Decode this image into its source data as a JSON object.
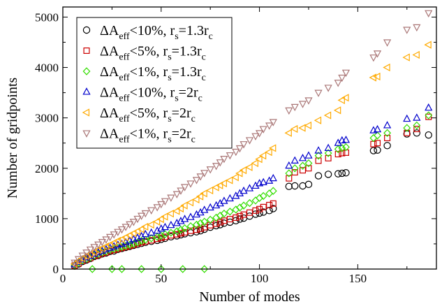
{
  "chart_data": {
    "type": "scatter",
    "xlabel": "Number of modes",
    "ylabel": "Number of gridpoints",
    "xlim": [
      0,
      190
    ],
    "ylim": [
      0,
      5200
    ],
    "xticks": [
      0,
      50,
      100,
      150
    ],
    "yticks": [
      0,
      1000,
      2000,
      3000,
      4000,
      5000
    ],
    "grid": false,
    "legend_position": "top-left",
    "series": [
      {
        "key": "s1",
        "marker": "circle",
        "color": "#000000",
        "label": {
          "pre": "ΔA",
          "sub1": "eff",
          "mid": "<10%, r",
          "sub2": "s",
          "post": "=1.3r",
          "sub3": "c"
        },
        "x": [
          6,
          8,
          10,
          12,
          14,
          16,
          18,
          20,
          22,
          24,
          26,
          28,
          30,
          32,
          34,
          36,
          38,
          40,
          42,
          45,
          48,
          50,
          52,
          55,
          58,
          60,
          62,
          65,
          68,
          70,
          72,
          75,
          78,
          80,
          82,
          85,
          88,
          90,
          92,
          95,
          98,
          100,
          102,
          105,
          107,
          115,
          118,
          122,
          125,
          130,
          135,
          140,
          142,
          144,
          158,
          160,
          165,
          175,
          180,
          186
        ],
        "y": [
          60,
          100,
          150,
          180,
          210,
          250,
          270,
          300,
          320,
          350,
          360,
          390,
          410,
          430,
          450,
          470,
          490,
          510,
          530,
          550,
          570,
          590,
          610,
          640,
          660,
          680,
          700,
          720,
          740,
          760,
          790,
          830,
          860,
          880,
          910,
          930,
          960,
          990,
          1010,
          1050,
          1090,
          1110,
          1130,
          1160,
          1200,
          1640,
          1650,
          1650,
          1680,
          1850,
          1880,
          1890,
          1900,
          1910,
          2350,
          2360,
          2450,
          2680,
          2700,
          2660
        ]
      },
      {
        "key": "s2",
        "marker": "square",
        "color": "#cc0000",
        "label": {
          "pre": "ΔA",
          "sub1": "eff",
          "mid": "<5%, r",
          "sub2": "s",
          "post": "=1.3r",
          "sub3": "c"
        },
        "x": [
          6,
          8,
          10,
          12,
          14,
          16,
          18,
          20,
          22,
          24,
          26,
          28,
          30,
          32,
          34,
          36,
          38,
          40,
          42,
          45,
          48,
          50,
          52,
          55,
          58,
          60,
          62,
          65,
          68,
          70,
          72,
          75,
          78,
          80,
          82,
          85,
          88,
          90,
          92,
          95,
          98,
          100,
          102,
          105,
          107,
          115,
          118,
          122,
          125,
          130,
          135,
          140,
          142,
          144,
          158,
          160,
          165,
          175,
          180,
          186
        ],
        "y": [
          70,
          110,
          160,
          190,
          220,
          260,
          280,
          310,
          330,
          360,
          380,
          400,
          420,
          440,
          460,
          480,
          510,
          530,
          550,
          570,
          600,
          620,
          640,
          670,
          690,
          710,
          730,
          760,
          780,
          800,
          830,
          870,
          900,
          930,
          960,
          990,
          1020,
          1050,
          1080,
          1120,
          1160,
          1190,
          1230,
          1270,
          1300,
          1800,
          1920,
          1960,
          2000,
          2150,
          2200,
          2280,
          2300,
          2310,
          2480,
          2500,
          2600,
          2700,
          2780,
          3020
        ]
      },
      {
        "key": "s3",
        "marker": "diamond",
        "color": "#33dd00",
        "label": {
          "pre": "ΔA",
          "sub1": "eff",
          "mid": "<1%, r",
          "sub2": "s",
          "post": "=1.3r",
          "sub3": "c"
        },
        "x": [
          6,
          8,
          10,
          12,
          14,
          16,
          18,
          20,
          22,
          24,
          26,
          28,
          30,
          32,
          34,
          36,
          38,
          40,
          42,
          45,
          48,
          50,
          52,
          55,
          58,
          60,
          62,
          65,
          68,
          70,
          72,
          75,
          78,
          80,
          82,
          85,
          88,
          90,
          92,
          95,
          98,
          100,
          102,
          105,
          107,
          115,
          118,
          122,
          125,
          130,
          135,
          140,
          142,
          144,
          158,
          160,
          165,
          175,
          180,
          186,
          15,
          25,
          30,
          40,
          50,
          61,
          72
        ],
        "y": [
          80,
          120,
          170,
          200,
          230,
          270,
          300,
          330,
          350,
          380,
          400,
          420,
          440,
          460,
          480,
          500,
          530,
          560,
          580,
          610,
          640,
          660,
          690,
          720,
          750,
          780,
          810,
          850,
          880,
          910,
          940,
          980,
          1020,
          1060,
          1100,
          1140,
          1180,
          1220,
          1260,
          1310,
          1360,
          1410,
          1450,
          1500,
          1550,
          1900,
          2000,
          2050,
          2100,
          2250,
          2300,
          2380,
          2400,
          2420,
          2600,
          2650,
          2700,
          2800,
          2850,
          3050,
          0,
          0,
          0,
          0,
          0,
          0,
          0
        ]
      },
      {
        "key": "s4",
        "marker": "triangle-up",
        "color": "#0000cc",
        "label": {
          "pre": "ΔA",
          "sub1": "eff",
          "mid": "<10%, r",
          "sub2": "s",
          "post": "=2r",
          "sub3": "c"
        },
        "x": [
          6,
          8,
          10,
          12,
          14,
          16,
          18,
          20,
          22,
          24,
          26,
          28,
          30,
          32,
          34,
          36,
          38,
          40,
          42,
          45,
          48,
          50,
          52,
          55,
          58,
          60,
          62,
          65,
          68,
          70,
          72,
          75,
          78,
          80,
          82,
          85,
          88,
          90,
          92,
          95,
          98,
          100,
          102,
          105,
          107,
          115,
          118,
          122,
          125,
          130,
          135,
          140,
          142,
          144,
          158,
          160,
          165,
          175,
          180,
          186
        ],
        "y": [
          90,
          140,
          190,
          230,
          260,
          300,
          330,
          360,
          390,
          420,
          450,
          480,
          500,
          530,
          560,
          590,
          620,
          650,
          690,
          720,
          760,
          800,
          830,
          870,
          910,
          950,
          990,
          1030,
          1080,
          1120,
          1170,
          1220,
          1260,
          1300,
          1350,
          1400,
          1450,
          1500,
          1550,
          1600,
          1650,
          1700,
          1720,
          1750,
          1800,
          2050,
          2150,
          2200,
          2250,
          2350,
          2400,
          2500,
          2550,
          2560,
          2750,
          2770,
          2850,
          2980,
          3000,
          3200
        ]
      },
      {
        "key": "s5",
        "marker": "triangle-left",
        "color": "#ffaa00",
        "label": {
          "pre": "ΔA",
          "sub1": "eff",
          "mid": "<5%, r",
          "sub2": "s",
          "post": "=2r",
          "sub3": "c"
        },
        "x": [
          6,
          8,
          10,
          12,
          14,
          16,
          18,
          20,
          22,
          24,
          26,
          28,
          30,
          32,
          34,
          36,
          38,
          40,
          42,
          45,
          48,
          50,
          52,
          55,
          58,
          60,
          62,
          65,
          68,
          70,
          72,
          75,
          78,
          80,
          82,
          85,
          88,
          90,
          92,
          95,
          98,
          100,
          102,
          105,
          107,
          115,
          118,
          122,
          125,
          130,
          135,
          140,
          142,
          144,
          158,
          160,
          165,
          175,
          180,
          186
        ],
        "y": [
          100,
          160,
          210,
          260,
          300,
          340,
          380,
          410,
          450,
          480,
          520,
          560,
          590,
          630,
          670,
          710,
          750,
          790,
          840,
          880,
          940,
          990,
          1040,
          1100,
          1150,
          1200,
          1260,
          1320,
          1380,
          1440,
          1500,
          1560,
          1620,
          1660,
          1700,
          1760,
          1820,
          1900,
          1960,
          2020,
          2100,
          2180,
          2250,
          2320,
          2400,
          2700,
          2780,
          2800,
          2850,
          2950,
          3050,
          3150,
          3350,
          3400,
          3800,
          3820,
          4000,
          4200,
          4250,
          4450
        ]
      },
      {
        "key": "s6",
        "marker": "triangle-down",
        "color": "#aa7777",
        "label": {
          "pre": "ΔA",
          "sub1": "eff",
          "mid": "<1%, r",
          "sub2": "s",
          "post": "=2r",
          "sub3": "c"
        },
        "x": [
          6,
          8,
          10,
          12,
          14,
          16,
          18,
          20,
          22,
          24,
          26,
          28,
          30,
          32,
          34,
          36,
          38,
          40,
          42,
          45,
          48,
          50,
          52,
          55,
          58,
          60,
          62,
          65,
          68,
          70,
          72,
          75,
          78,
          80,
          82,
          85,
          88,
          90,
          92,
          95,
          98,
          100,
          102,
          105,
          107,
          115,
          118,
          122,
          125,
          130,
          135,
          140,
          142,
          144,
          158,
          160,
          165,
          175,
          180,
          186
        ],
        "y": [
          130,
          200,
          270,
          330,
          390,
          440,
          490,
          540,
          590,
          640,
          690,
          740,
          790,
          840,
          890,
          940,
          1000,
          1060,
          1110,
          1170,
          1230,
          1290,
          1350,
          1420,
          1490,
          1560,
          1630,
          1700,
          1770,
          1840,
          1910,
          1980,
          2050,
          2120,
          2190,
          2260,
          2330,
          2400,
          2480,
          2560,
          2640,
          2700,
          2780,
          2850,
          2920,
          3150,
          3220,
          3280,
          3350,
          3500,
          3600,
          3700,
          3800,
          3900,
          4200,
          4280,
          4500,
          4750,
          4800,
          5080
        ]
      }
    ]
  }
}
